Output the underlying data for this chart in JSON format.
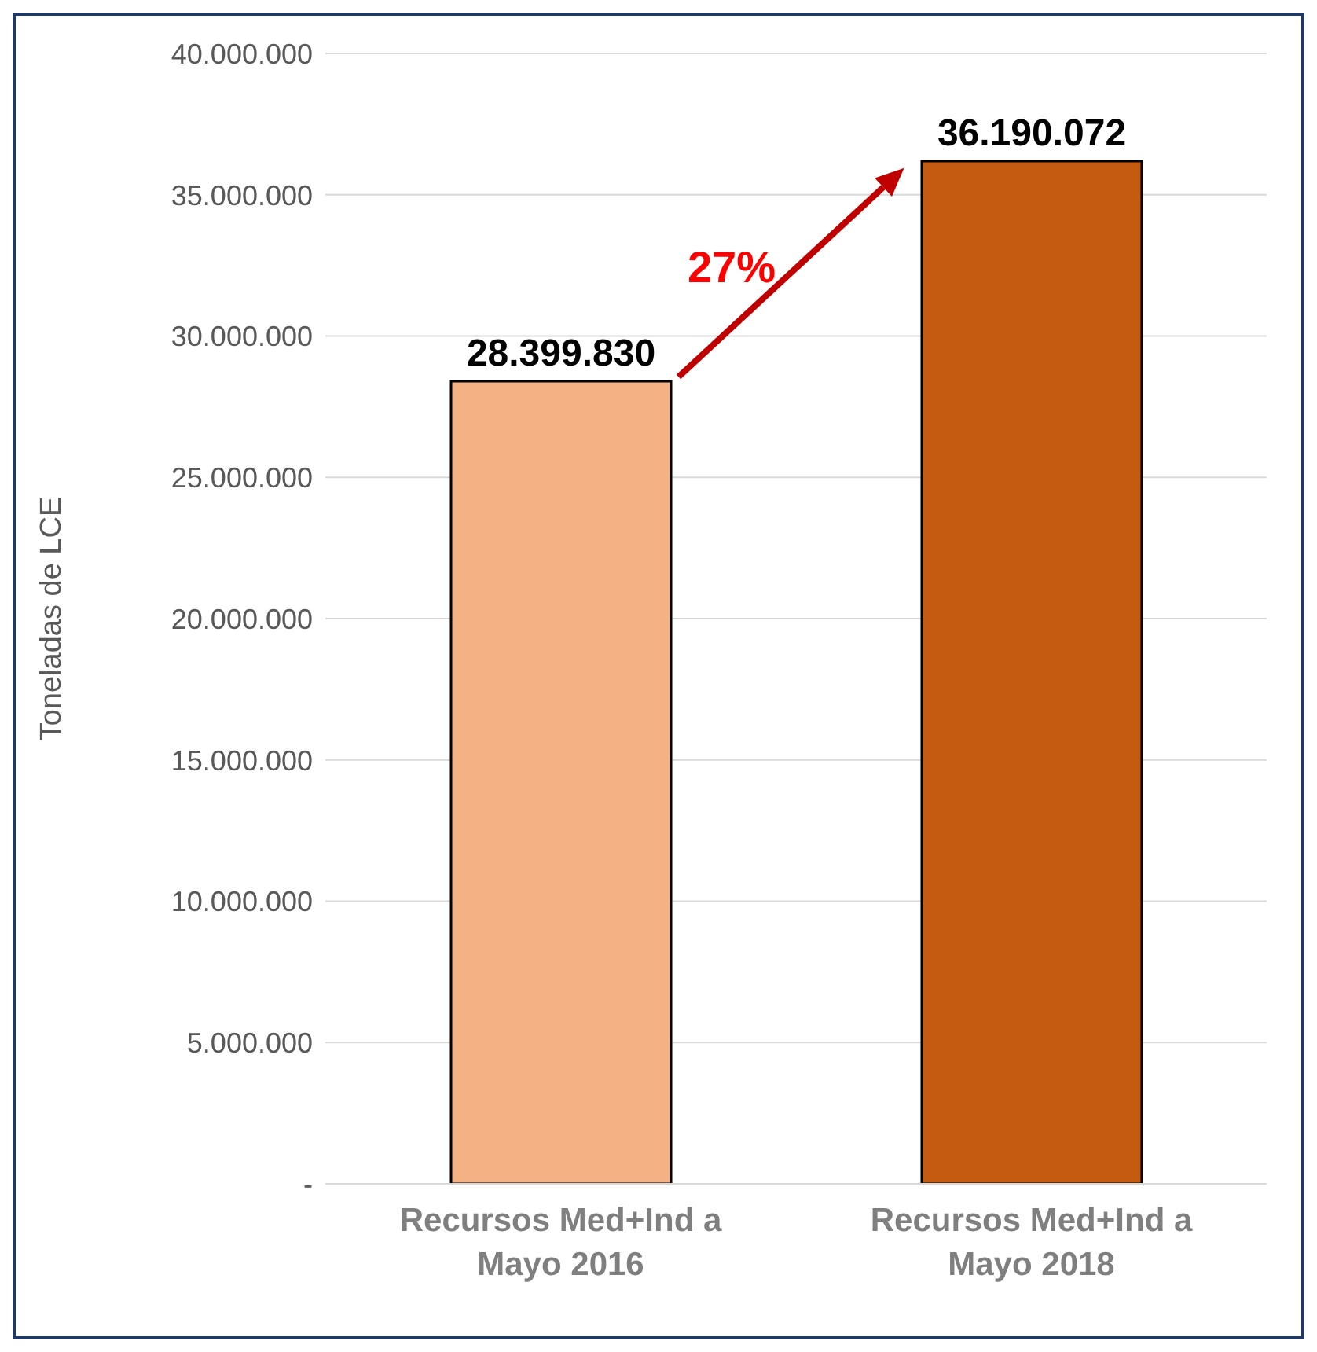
{
  "chart_data": {
    "type": "bar",
    "ylabel": "Toneladas de LCE",
    "categories": [
      "Recursos Med+Ind  a Mayo 2016",
      "Recursos Med+Ind a Mayo 2018"
    ],
    "values": [
      28399830,
      36190072
    ],
    "colors": [
      "#f4b183",
      "#c55a11"
    ],
    "value_labels": [
      "28.399.830",
      "36.190.072"
    ],
    "ylim": [
      0,
      40000000
    ],
    "yticks": [
      {
        "value": 0,
        "label": "-"
      },
      {
        "value": 5000000,
        "label": "5.000.000"
      },
      {
        "value": 10000000,
        "label": "10.000.000"
      },
      {
        "value": 15000000,
        "label": "15.000.000"
      },
      {
        "value": 20000000,
        "label": "20.000.000"
      },
      {
        "value": 25000000,
        "label": "25.000.000"
      },
      {
        "value": 30000000,
        "label": "30.000.000"
      },
      {
        "value": 35000000,
        "label": "35.000.000"
      },
      {
        "value": 40000000,
        "label": "40.000.000"
      }
    ],
    "grid": "y",
    "annotations": [
      "27%"
    ]
  }
}
